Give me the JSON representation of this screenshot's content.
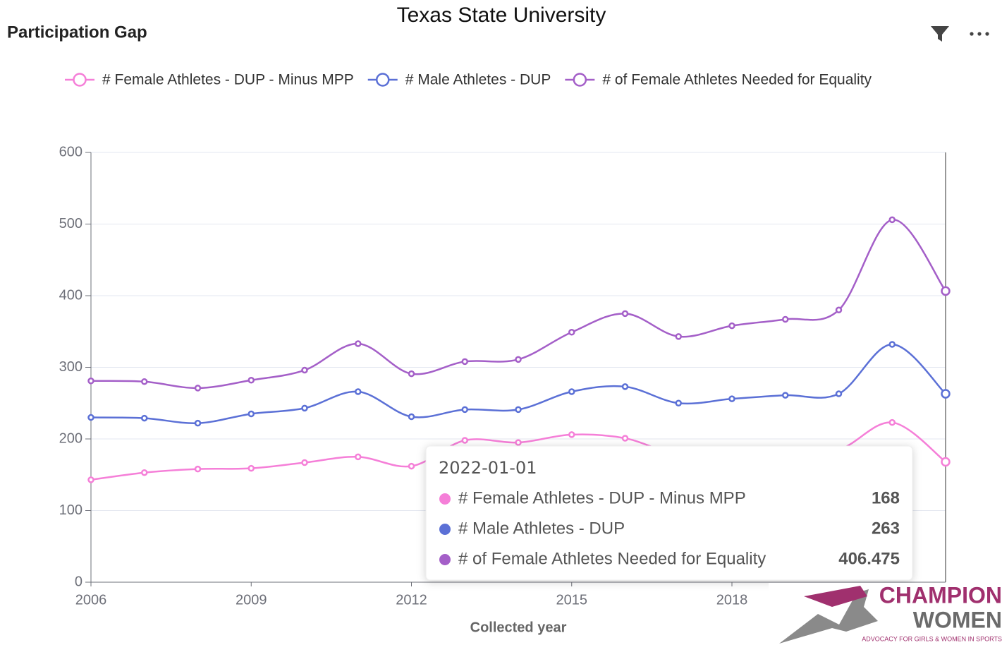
{
  "header": {
    "title": "Participation Gap"
  },
  "chart_data": {
    "type": "line",
    "title": "Texas State University",
    "x_label": "Collected year",
    "x": [
      2006,
      2007,
      2008,
      2009,
      2010,
      2011,
      2012,
      2013,
      2014,
      2015,
      2016,
      2017,
      2018,
      2019,
      2020,
      2021,
      2022
    ],
    "series": [
      {
        "name": "# Female Athletes - DUP - Minus MPP",
        "color": "#f57fd8",
        "values": [
          143,
          153,
          158,
          159,
          167,
          175,
          162,
          198,
          195,
          206,
          201,
          178,
          180,
          182,
          185,
          223,
          168
        ]
      },
      {
        "name": "# Male Athletes - DUP",
        "color": "#5b70d6",
        "values": [
          230,
          229,
          222,
          235,
          243,
          266,
          231,
          241,
          241,
          266,
          273,
          250,
          256,
          261,
          263,
          332,
          263
        ]
      },
      {
        "name": "# of Female Athletes Needed for Equality",
        "color": "#a45fc8",
        "values": [
          281,
          280,
          271,
          282,
          296,
          333,
          291,
          308,
          311,
          349,
          375,
          343,
          358,
          367,
          380,
          506,
          406.475
        ]
      }
    ],
    "xlim": [
      2006,
      2022
    ],
    "xticks": [
      2006,
      2009,
      2012,
      2015,
      2018
    ],
    "ylim": [
      0,
      600
    ],
    "yticks": [
      0,
      100,
      200,
      300,
      400,
      500,
      600
    ],
    "grid": true,
    "legend": "top",
    "tooltip": {
      "title": "2022-01-01"
    }
  },
  "logo": {
    "line1": "CHAMPION",
    "line2": "WOMEN",
    "tagline": "ADVOCACY FOR GIRLS & WOMEN IN SPORTS"
  }
}
